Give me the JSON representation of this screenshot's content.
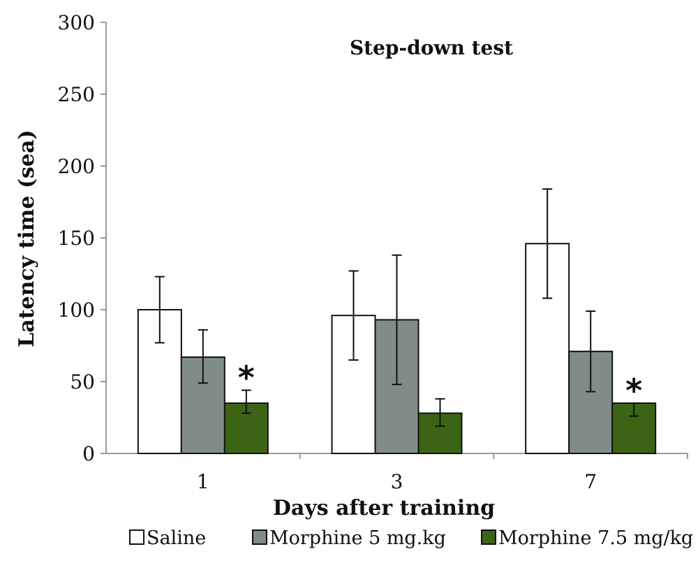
{
  "chart_data": {
    "type": "bar",
    "title": "Step-down test",
    "xlabel": "Days after training",
    "ylabel": "Latency time (sea)",
    "categories": [
      "1",
      "3",
      "7"
    ],
    "ylim": [
      0,
      300
    ],
    "yticks": [
      0,
      50,
      100,
      150,
      200,
      250,
      300
    ],
    "grid": false,
    "legend_position": "bottom",
    "series": [
      {
        "name": "Saline",
        "color": "#ffffff",
        "values": [
          100,
          96,
          146
        ],
        "err_low": [
          77,
          65,
          108
        ],
        "err_high": [
          123,
          127,
          184
        ]
      },
      {
        "name": "Morphine 5 mg.kg",
        "color": "#7f8c8a",
        "values": [
          67,
          93,
          71
        ],
        "err_low": [
          49,
          48,
          43
        ],
        "err_high": [
          86,
          138,
          99
        ]
      },
      {
        "name": "Morphine 7.5 mg/kg",
        "color": "#3c6414",
        "values": [
          35,
          28,
          35
        ],
        "err_low": [
          28,
          19,
          26
        ],
        "err_high": [
          44,
          38,
          35
        ]
      }
    ],
    "annotations": [
      {
        "text": "*",
        "category": "1",
        "series": "Morphine 7.5 mg/kg"
      },
      {
        "text": "*",
        "category": "7",
        "series": "Morphine 7.5 mg/kg"
      }
    ]
  }
}
